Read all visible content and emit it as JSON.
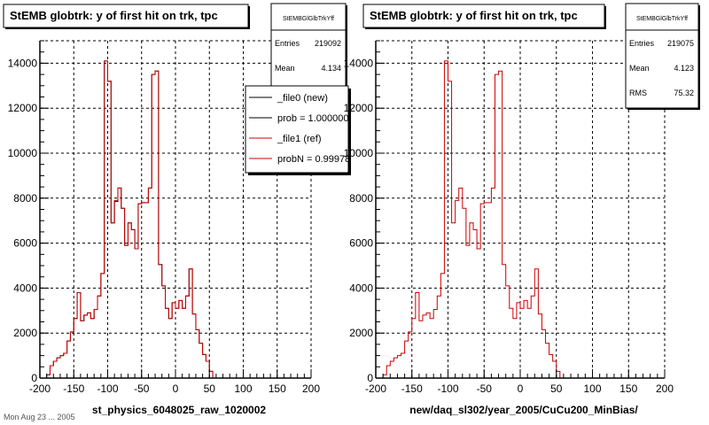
{
  "footer_text": "Mon Aug 23 ... 2005",
  "colors": {
    "new": "#000000",
    "ref": "#cc0000",
    "grid": "#000000",
    "frame": "#000000"
  },
  "chart_data": [
    {
      "type": "histogram",
      "title": "StEMB globtrk: y of first hit on trk, tpc",
      "xlabel": "st_physics_6048025_raw_1020002",
      "ylabel": "",
      "xlim": [
        -200,
        200
      ],
      "ylim": [
        0,
        15000
      ],
      "xticks": [
        -200,
        -150,
        -100,
        -50,
        0,
        50,
        100,
        150,
        200
      ],
      "yticks": [
        0,
        2000,
        4000,
        6000,
        8000,
        10000,
        12000,
        14000
      ],
      "grid": true,
      "stats": {
        "name": "StEMBGlGlbTrkYff",
        "rows": [
          {
            "label": "Entries",
            "value": "219092"
          },
          {
            "label": "Mean",
            "value": "4.134"
          }
        ]
      },
      "legend": {
        "placement": "top-right",
        "entries": [
          {
            "label": "_file0 (new)",
            "series": "new"
          },
          {
            "label": "prob = 1.000000",
            "series": "new"
          },
          {
            "label": "_file1 (ref)",
            "series": "ref"
          },
          {
            "label": "probN = 0.99978",
            "series": "ref"
          }
        ]
      },
      "bin_edges_start": -190,
      "bin_width": 5,
      "series": [
        {
          "name": "_file0 (new)",
          "key": "new",
          "values": [
            150,
            550,
            750,
            900,
            1000,
            1100,
            1650,
            2050,
            2650,
            3800,
            2550,
            2800,
            2900,
            2650,
            3050,
            3650,
            4650,
            14100,
            13200,
            6900,
            7850,
            8450,
            7550,
            5900,
            6900,
            6600,
            5750,
            7750,
            7800,
            7800,
            8450,
            13500,
            13650,
            5050,
            4100,
            3100,
            2650,
            3350,
            3100,
            3450,
            3100,
            3650,
            4850,
            2850,
            2150,
            1550,
            1050,
            750,
            300,
            0
          ]
        },
        {
          "name": "_file1 (ref)",
          "key": "ref",
          "values": [
            150,
            550,
            750,
            900,
            1000,
            1100,
            1650,
            2050,
            2650,
            3800,
            2550,
            2800,
            2900,
            2650,
            3050,
            3650,
            4650,
            14100,
            13200,
            6900,
            7900,
            8450,
            7550,
            5900,
            6900,
            6600,
            5750,
            7750,
            7800,
            7800,
            8450,
            13500,
            13650,
            5050,
            4100,
            3100,
            2650,
            3350,
            3100,
            3450,
            3100,
            3650,
            4850,
            2850,
            2150,
            1550,
            1050,
            750,
            300,
            0
          ]
        }
      ]
    },
    {
      "type": "histogram",
      "title": "StEMB globtrk: y of first hit on trk, tpc",
      "xlabel": "new/daq_sl302/year_2005/CuCu200_MinBias/",
      "ylabel": "",
      "xlim": [
        -200,
        200
      ],
      "ylim": [
        0,
        15000
      ],
      "xticks": [
        -200,
        -150,
        -100,
        -50,
        0,
        50,
        100,
        150,
        200
      ],
      "yticks": [
        0,
        2000,
        4000,
        6000,
        8000,
        10000,
        12000,
        14000
      ],
      "grid": true,
      "stats": {
        "name": "StEMBGlGlbTrkYff",
        "rows": [
          {
            "label": "Entries",
            "value": "219075"
          },
          {
            "label": "Mean",
            "value": "4.123"
          },
          {
            "label": "RMS",
            "value": "75.32"
          }
        ]
      },
      "legend": null,
      "bin_edges_start": -190,
      "bin_width": 5,
      "series": [
        {
          "name": "",
          "key": "ref",
          "values": [
            150,
            550,
            750,
            900,
            1000,
            1100,
            1650,
            2050,
            2650,
            3800,
            2550,
            2800,
            2900,
            2650,
            3050,
            3650,
            4650,
            14100,
            13200,
            6900,
            7900,
            8450,
            7550,
            5900,
            6900,
            6600,
            5750,
            7750,
            7800,
            7800,
            8450,
            13500,
            13650,
            5050,
            4100,
            3100,
            2650,
            3350,
            3100,
            3450,
            3100,
            3650,
            4850,
            2850,
            2150,
            1550,
            1050,
            750,
            300,
            0
          ]
        }
      ]
    }
  ]
}
